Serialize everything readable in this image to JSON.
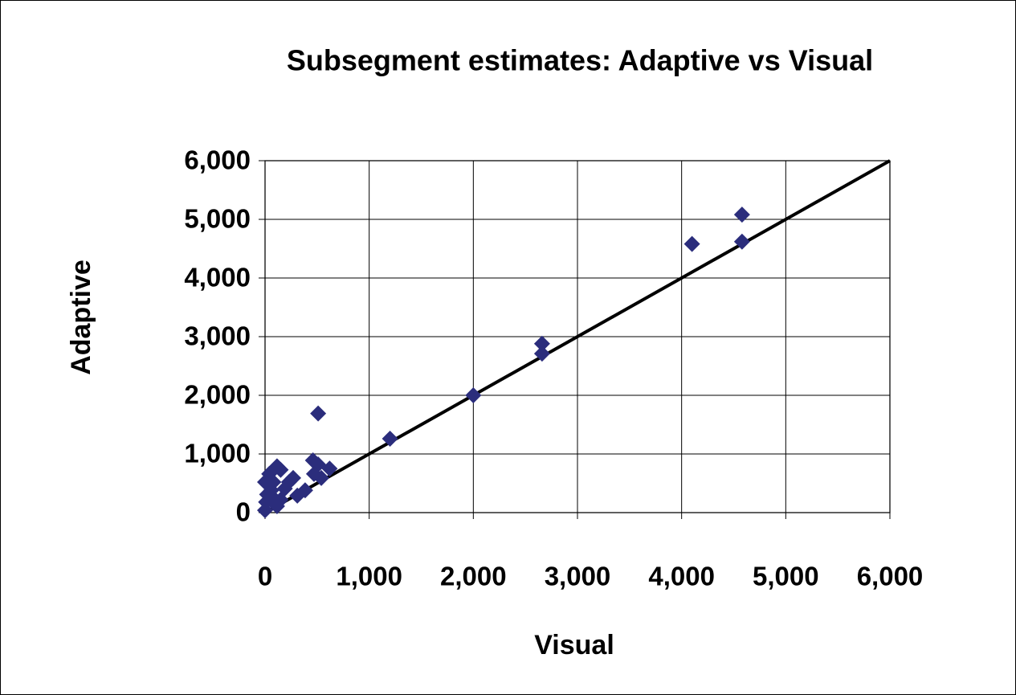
{
  "chart_data": {
    "type": "scatter",
    "title": "Subsegment estimates: Adaptive vs Visual",
    "x_label": "Visual",
    "y_label": "Adaptive",
    "xlim": [
      0,
      6000
    ],
    "ylim": [
      0,
      6000
    ],
    "xticks": [
      0,
      {
        "value": 1000,
        "label": "1,000"
      },
      {
        "value": 2000,
        "label": "2,000"
      },
      {
        "value": 3000,
        "label": "3,000"
      },
      {
        "value": 4000,
        "label": "4,000"
      },
      {
        "value": 5000,
        "label": "5,000"
      },
      {
        "value": 6000,
        "label": "6,000"
      }
    ],
    "yticks": [
      0,
      {
        "value": 1000,
        "label": "1,000"
      },
      {
        "value": 2000,
        "label": "2,000"
      },
      {
        "value": 3000,
        "label": "3,000"
      },
      {
        "value": 4000,
        "label": "4,000"
      },
      {
        "value": 5000,
        "label": "5,000"
      },
      {
        "value": 6000,
        "label": "6,000"
      }
    ],
    "grid": true,
    "color": "#2b2d7c",
    "x": [
      4580,
      4580,
      4100,
      2660,
      2660,
      2000,
      1200,
      510,
      460,
      510,
      620,
      540,
      470,
      385,
      310,
      230,
      150,
      115,
      40,
      0,
      20,
      80,
      115,
      0,
      60,
      190,
      150,
      10,
      80,
      270
    ],
    "values": [
      5080,
      4620,
      4580,
      2880,
      2710,
      2000,
      1260,
      1690,
      890,
      820,
      750,
      590,
      660,
      380,
      290,
      520,
      730,
      790,
      660,
      520,
      310,
      250,
      110,
      40,
      380,
      410,
      220,
      180,
      520,
      590
    ],
    "reference_line": {
      "x": [
        0,
        6000
      ],
      "y": [
        0,
        6000
      ],
      "color": "#000000"
    }
  }
}
